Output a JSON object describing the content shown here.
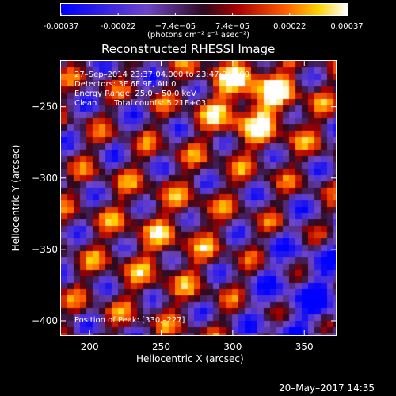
{
  "chart_data": {
    "type": "heatmap",
    "title": "Reconstructed RHESSI Image",
    "xlabel": "Heliocentric X (arcsec)",
    "ylabel": "Heliocentric Y (arcsec)",
    "xlim": [
      180,
      372
    ],
    "ylim": [
      -410,
      -218
    ],
    "xticks": [
      200,
      250,
      300,
      350
    ],
    "yticks": [
      -250,
      -300,
      -350,
      -400
    ],
    "colorbar": {
      "ticks": [
        "-0.00037",
        "-0.00022",
        "−7.4e−05",
        "7.4e−05",
        "0.00022",
        "0.00037"
      ],
      "unit_label": "(photons cm⁻² s⁻¹ asec⁻²)",
      "range": [
        -0.00037,
        0.00037
      ]
    },
    "annotations": {
      "time": "27–Sep–2014 23:37:04.000 to 23:47:04.000",
      "detectors": "Detectors: 3F 6F 9F, Att 0",
      "energy": "Energy Range: 25.0 – 50.0 keV",
      "algorithm": "Clean",
      "counts": "Total counts: 5.21E+03",
      "peak": "Position of Peak:   [330,–227]"
    },
    "peak_position": [
      330,
      -227
    ],
    "timestamp": "20–May–2017 14:35"
  }
}
